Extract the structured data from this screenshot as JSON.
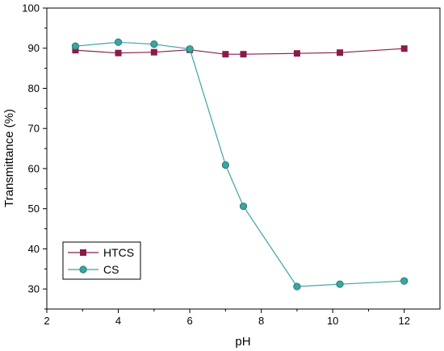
{
  "chart_data": {
    "type": "line",
    "xlabel": "pH",
    "ylabel": "Transmittance (%)",
    "xlim": [
      2,
      13
    ],
    "ylim": [
      25,
      100
    ],
    "xticks": [
      2,
      4,
      6,
      8,
      10,
      12
    ],
    "yticks": [
      30,
      40,
      50,
      60,
      70,
      80,
      90,
      100
    ],
    "xtick_labels": [
      "2",
      "4",
      "6",
      "8",
      "10",
      "12"
    ],
    "ytick_labels": [
      "30",
      "40",
      "50",
      "60",
      "70",
      "80",
      "90",
      "100"
    ],
    "grid": false,
    "legend_position": "bottom-left",
    "series": [
      {
        "name": "HTCS",
        "color": "#8b1a4a",
        "marker": "square",
        "x": [
          2.8,
          4.0,
          5.0,
          6.0,
          7.0,
          7.5,
          9.0,
          10.2,
          12.0
        ],
        "y": [
          89.5,
          88.8,
          89.0,
          89.6,
          88.5,
          88.5,
          88.7,
          88.9,
          89.9
        ]
      },
      {
        "name": "CS",
        "color": "#3aa5a3",
        "marker": "circle",
        "x": [
          2.8,
          4.0,
          5.0,
          6.0,
          7.0,
          7.5,
          9.0,
          10.2,
          12.0
        ],
        "y": [
          90.5,
          91.5,
          91.0,
          89.8,
          60.9,
          50.6,
          30.6,
          31.2,
          32.0
        ]
      }
    ]
  }
}
